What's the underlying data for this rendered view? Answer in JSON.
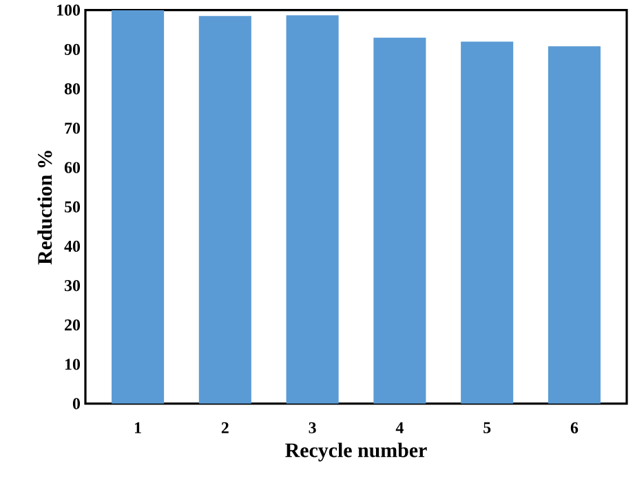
{
  "chart_data": {
    "type": "bar",
    "xlabel": "Recycle number",
    "ylabel": "Reduction %",
    "categories": [
      "1",
      "2",
      "3",
      "4",
      "5",
      "6"
    ],
    "values": [
      100,
      98.5,
      98.7,
      93,
      92,
      90.8
    ],
    "color": "#5b9bd5",
    "ylim": [
      0,
      100
    ],
    "yticks": [
      0,
      10,
      20,
      30,
      40,
      50,
      60,
      70,
      80,
      90,
      100
    ]
  }
}
